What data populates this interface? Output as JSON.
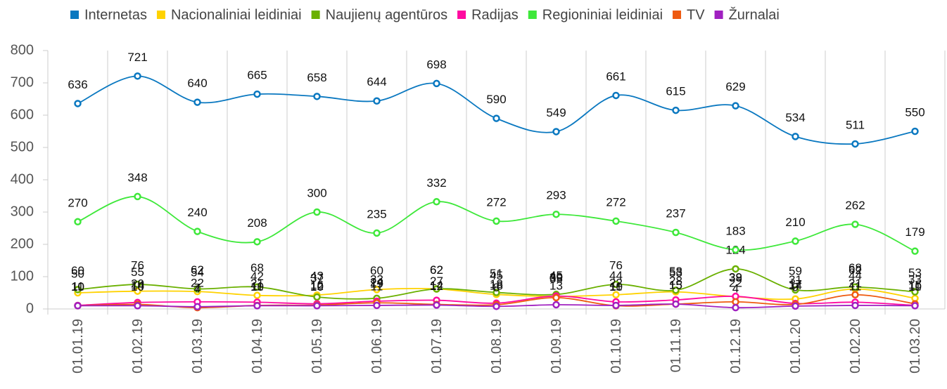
{
  "chart_data": {
    "type": "line",
    "categories": [
      "01.01.19",
      "01.02.19",
      "01.03.19",
      "01.04.19",
      "01.05.19",
      "01.06.19",
      "01.07.19",
      "01.08.19",
      "01.09.19",
      "01.10.19",
      "01.11.19",
      "01.12.19",
      "01.01.20",
      "01.02.20",
      "01.03.20"
    ],
    "series": [
      {
        "name": "Internetas",
        "color": "#0a78c0",
        "values": [
          636,
          721,
          640,
          665,
          658,
          644,
          698,
          590,
          549,
          661,
          615,
          629,
          534,
          511,
          550
        ]
      },
      {
        "name": "Nacionaliniai leidiniai",
        "color": "#ffd200",
        "values": [
          50,
          55,
          54,
          42,
          43,
          60,
          62,
          45,
          39,
          44,
          53,
          38,
          31,
          62,
          33
        ]
      },
      {
        "name": "Naujienų agentūros",
        "color": "#6ab000",
        "values": [
          60,
          76,
          62,
          68,
          37,
          33,
          62,
          51,
          45,
          76,
          58,
          124,
          59,
          68,
          53
        ]
      },
      {
        "name": "Radijas",
        "color": "#ff0aa0",
        "values": [
          11,
          20,
          22,
          21,
          16,
          24,
          27,
          18,
          40,
          22,
          28,
          39,
          17,
          21,
          11
        ]
      },
      {
        "name": "Regioniniai leidiniai",
        "color": "#3ee83a",
        "values": [
          270,
          348,
          240,
          208,
          300,
          235,
          332,
          272,
          293,
          272,
          237,
          183,
          210,
          262,
          179
        ]
      },
      {
        "name": "TV",
        "color": "#ee5a10",
        "values": [
          10,
          14,
          4,
          11,
          12,
          19,
          14,
          13,
          35,
          10,
          15,
          22,
          14,
          44,
          16
        ]
      },
      {
        "name": "Žurnalai",
        "color": "#a020c0",
        "values": [
          10,
          10,
          7,
          10,
          10,
          11,
          12,
          8,
          13,
          11,
          15,
          4,
          9,
          11,
          10
        ]
      }
    ],
    "ylim": [
      0,
      800
    ],
    "yticks": [
      0,
      100,
      200,
      300,
      400,
      500,
      600,
      700,
      800
    ],
    "grid": true
  }
}
